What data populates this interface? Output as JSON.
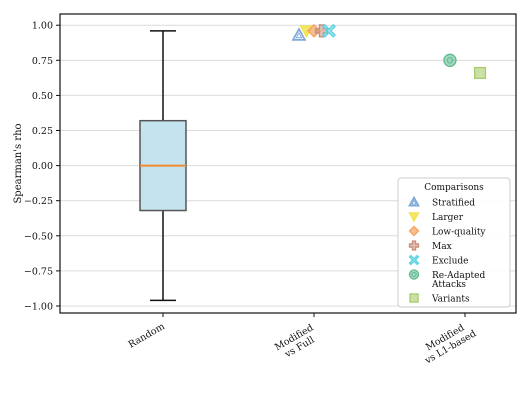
{
  "chart_data": {
    "type": "box+scatter",
    "ylabel": "Spearman's rho",
    "ylim": [
      -1.05,
      1.08
    ],
    "yticks": [
      1.0,
      0.75,
      0.5,
      0.25,
      0.0,
      -0.25,
      -0.5,
      -0.75,
      -1.0
    ],
    "ytick_labels": [
      "1.00",
      "0.75",
      "0.50",
      "0.25",
      "0.00",
      "−0.25",
      "−0.50",
      "−0.75",
      "−1.00"
    ],
    "grid": "horizontal",
    "categories": [
      {
        "lines": [
          "Random"
        ]
      },
      {
        "lines": [
          "Modified",
          "vs Full"
        ]
      },
      {
        "lines": [
          "Modified",
          "vs L1-based"
        ]
      }
    ],
    "box": {
      "category": "Random",
      "whisker_low": -0.96,
      "q1": -0.32,
      "median": 0.0,
      "q3": 0.32,
      "whisker_high": 0.96,
      "fill": "#c5e3ee",
      "edge": "#555555",
      "median_color": "#f28a30"
    },
    "series": [
      {
        "name": "Stratified",
        "marker": "triangle-up",
        "color": "#7da7d9",
        "category": "Modified\nvs Full",
        "offset": -0.24,
        "y": 0.93
      },
      {
        "name": "Larger",
        "marker": "triangle-down",
        "color": "#f2e24a",
        "category": "Modified\nvs Full",
        "offset": -0.12,
        "y": 0.96
      },
      {
        "name": "Low-quality",
        "marker": "diamond",
        "color": "#f4a261",
        "category": "Modified\nvs Full",
        "offset": 0.0,
        "y": 0.96
      },
      {
        "name": "Max",
        "marker": "plus",
        "color": "#c98f7c",
        "category": "Modified\nvs Full",
        "offset": 0.12,
        "y": 0.96
      },
      {
        "name": "Exclude",
        "marker": "x",
        "color": "#5bd3e0",
        "category": "Modified\nvs Full",
        "offset": 0.24,
        "y": 0.96
      },
      {
        "name": "Re-Adapted\nAttacks",
        "marker": "circle",
        "color": "#5cba8e",
        "category": "Modified\nvs L1-based",
        "offset": -0.24,
        "y": 0.75
      },
      {
        "name": "Variants",
        "marker": "square",
        "color": "#a8cc6b",
        "category": "Modified\nvs L1-based",
        "offset": 0.24,
        "y": 0.66
      }
    ],
    "legend": {
      "title": "Comparisons",
      "placement": "lower-right"
    }
  }
}
